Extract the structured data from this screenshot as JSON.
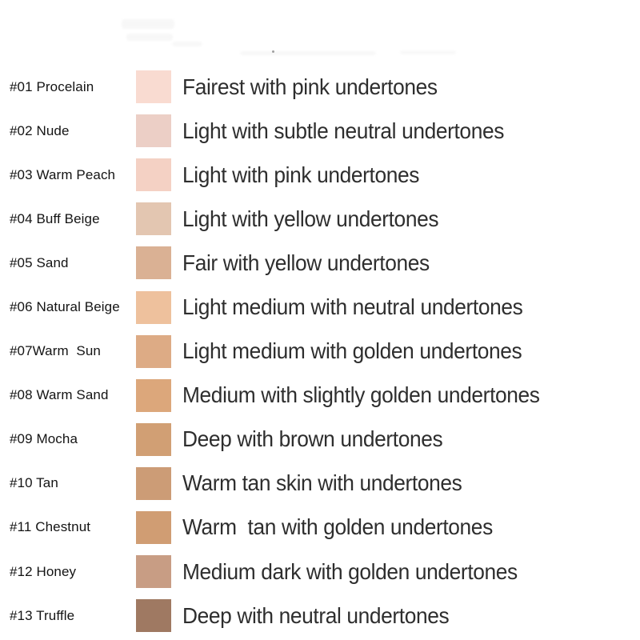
{
  "page": {
    "background": "#ffffff"
  },
  "shades": [
    {
      "code": "#01",
      "name": "Procelain",
      "label": "#01 Procelain",
      "swatch_color": "#f9dbd1",
      "description": "Fairest with pink undertones"
    },
    {
      "code": "#02",
      "name": "Nude",
      "label": "#02 Nude",
      "swatch_color": "#eccfc6",
      "description": "Light with subtle neutral undertones"
    },
    {
      "code": "#03",
      "name": "Warm Peach",
      "label": "#03 Warm Peach",
      "swatch_color": "#f4d1c4",
      "description": "Light with pink undertones"
    },
    {
      "code": "#04",
      "name": "Buff Beige",
      "label": "#04 Buff Beige",
      "swatch_color": "#e3c6b1",
      "description": "Light with yellow undertones"
    },
    {
      "code": "#05",
      "name": "Sand",
      "label": "#05 Sand",
      "swatch_color": "#dab194",
      "description": "Fair with yellow undertones"
    },
    {
      "code": "#06",
      "name": "Natural Beige",
      "label": "#06 Natural Beige",
      "swatch_color": "#eec19d",
      "description": "Light medium with neutral undertones"
    },
    {
      "code": "#07",
      "name": "Warm Sun",
      "label": "#07Warm  Sun",
      "swatch_color": "#ddab85",
      "description": "Light medium with golden undertones"
    },
    {
      "code": "#08",
      "name": "Warm Sand",
      "label": "#08 Warm Sand",
      "swatch_color": "#dca77b",
      "description": "Medium with slightly golden undertones"
    },
    {
      "code": "#09",
      "name": "Mocha",
      "label": "#09 Mocha",
      "swatch_color": "#d19f74",
      "description": "Deep with brown undertones"
    },
    {
      "code": "#10",
      "name": "Tan",
      "label": "#10 Tan",
      "swatch_color": "#cc9c76",
      "description": "Warm tan skin with undertones"
    },
    {
      "code": "#11",
      "name": "Chestnut",
      "label": "#11 Chestnut",
      "swatch_color": "#d09d73",
      "description": "Warm  tan with golden undertones"
    },
    {
      "code": "#12",
      "name": "Honey",
      "label": "#12 Honey",
      "swatch_color": "#c89d84",
      "description": "Medium dark with golden undertones"
    },
    {
      "code": "#13",
      "name": "Truffle",
      "label": "#13 Truffle",
      "swatch_color": "#9f7962",
      "description": "Deep with neutral undertones"
    }
  ],
  "chart_data": {
    "type": "table",
    "title": "",
    "columns": [
      "shade_label",
      "swatch_color",
      "description"
    ],
    "rows": [
      [
        "#01 Procelain",
        "#f9dbd1",
        "Fairest with pink undertones"
      ],
      [
        "#02 Nude",
        "#eccfc6",
        "Light with subtle neutral undertones"
      ],
      [
        "#03 Warm Peach",
        "#f4d1c4",
        "Light with pink undertones"
      ],
      [
        "#04 Buff Beige",
        "#e3c6b1",
        "Light with yellow undertones"
      ],
      [
        "#05 Sand",
        "#dab194",
        "Fair with yellow undertones"
      ],
      [
        "#06 Natural Beige",
        "#eec19d",
        "Light medium with neutral undertones"
      ],
      [
        "#07Warm  Sun",
        "#ddab85",
        "Light medium with golden undertones"
      ],
      [
        "#08 Warm Sand",
        "#dca77b",
        "Medium with slightly golden undertones"
      ],
      [
        "#09 Mocha",
        "#d19f74",
        "Deep with brown undertones"
      ],
      [
        "#10 Tan",
        "#cc9c76",
        "Warm tan skin with undertones"
      ],
      [
        "#11 Chestnut",
        "#d09d73",
        "Warm  tan with golden undertones"
      ],
      [
        "#12 Honey",
        "#c89d84",
        "Medium dark with golden undertones"
      ],
      [
        "#13 Truffle",
        "#9f7962",
        "Deep with neutral undertones"
      ]
    ],
    "legend_position": "none",
    "grid": false
  }
}
